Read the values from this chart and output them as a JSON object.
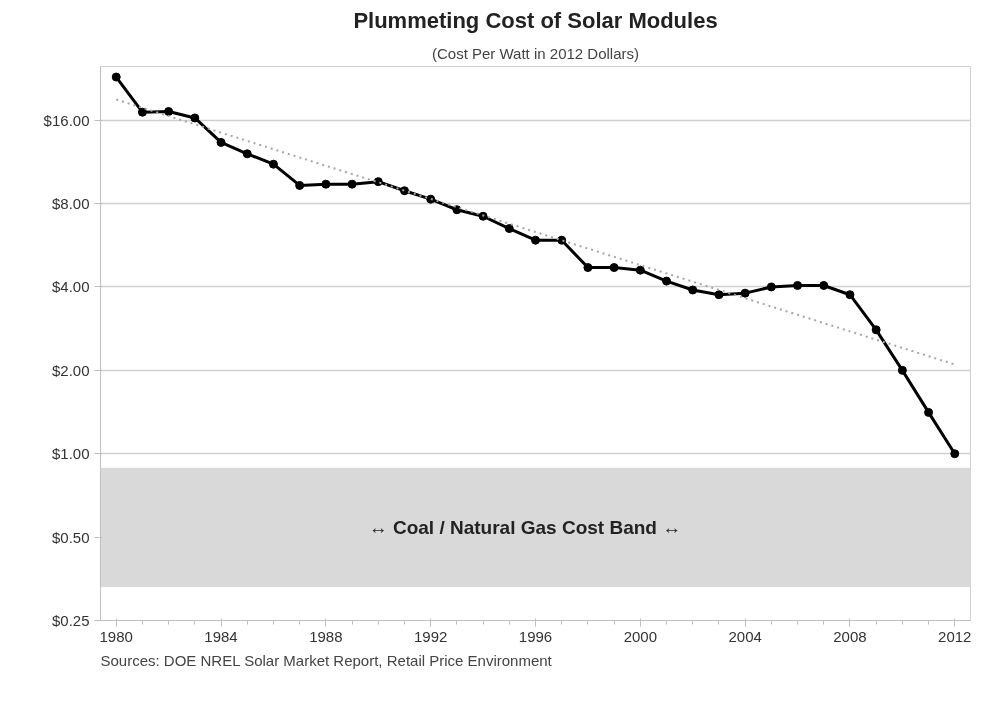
{
  "chart_data": {
    "type": "line",
    "title": "Plummeting Cost of Solar Modules",
    "subtitle": "(Cost Per Watt in 2012 Dollars)",
    "x": [
      1980,
      1981,
      1982,
      1983,
      1984,
      1985,
      1986,
      1987,
      1988,
      1989,
      1990,
      1991,
      1992,
      1993,
      1994,
      1995,
      1996,
      1997,
      1998,
      1999,
      2000,
      2001,
      2002,
      2003,
      2004,
      2005,
      2006,
      2007,
      2008,
      2009,
      2010,
      2011,
      2012
    ],
    "series": [
      {
        "color": "#000000",
        "marker": "circle",
        "line_style": "solid",
        "values": [
          22.9,
          17.1,
          17.2,
          16.3,
          13.3,
          12.1,
          11.1,
          9.3,
          9.4,
          9.4,
          9.6,
          8.9,
          8.3,
          7.6,
          7.2,
          6.5,
          5.9,
          5.9,
          4.7,
          4.7,
          4.6,
          4.2,
          3.9,
          3.75,
          3.8,
          4.0,
          4.05,
          4.05,
          3.75,
          2.8,
          2.0,
          1.41,
          1.0
        ]
      },
      {
        "color": "#a6a6a6",
        "marker": "none",
        "line_style": "dotted",
        "x": [
          1980,
          2012
        ],
        "values": [
          19,
          2.1
        ]
      }
    ],
    "log": "y",
    "xlim": [
      1979.4,
      2012.6
    ],
    "ylim": [
      0.25,
      25
    ],
    "xticks": [
      1980,
      1984,
      1988,
      1992,
      1996,
      2000,
      2004,
      2008,
      2012
    ],
    "yticks": [
      {
        "value": 0.25,
        "label": "$0.25"
      },
      {
        "value": 0.5,
        "label": "$0.50"
      },
      {
        "value": 1,
        "label": "$1.00"
      },
      {
        "value": 2,
        "label": "$2.00"
      },
      {
        "value": 4,
        "label": "$4.00"
      },
      {
        "value": 8,
        "label": "$8.00"
      },
      {
        "value": 16,
        "label": "$16.00"
      }
    ],
    "grid": "y",
    "bands": [
      {
        "axis": "y",
        "from": 0.33,
        "to": 0.89,
        "label": "↔   Coal / Natural Gas Cost Band   ↔",
        "color": "#d9d9d9"
      }
    ],
    "annotations": [
      "Sources:  DOE NREL Solar Market Report, Retail Price Environment"
    ]
  }
}
